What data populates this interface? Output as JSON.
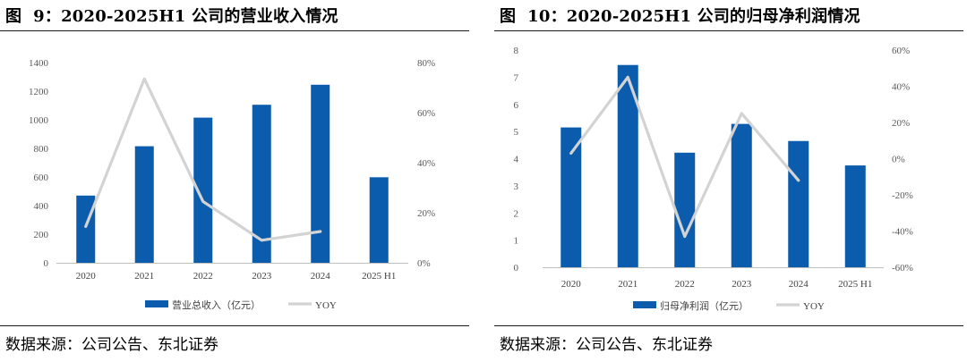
{
  "figures": [
    {
      "id": "left",
      "fig_label": "图",
      "fig_number": "9：",
      "fig_title": "2020-2025H1 公司的营业收入情况",
      "source": "数据来源：公司公告、东北证券",
      "chart_data": {
        "type": "bar",
        "categories": [
          "2020",
          "2021",
          "2022",
          "2023",
          "2024",
          "2025 H1"
        ],
        "bar_series": {
          "name": "营业总收入（亿元）",
          "values": [
            470,
            815,
            1015,
            1105,
            1245,
            598
          ],
          "color": "#0b5cad"
        },
        "line_series": {
          "name": "YOY",
          "values": [
            14.5,
            73.5,
            24.5,
            9.0,
            12.5,
            null
          ],
          "color": "#d3d3d3"
        },
        "y_left": {
          "min": 0,
          "max": 1400,
          "ticks": [
            0,
            200,
            400,
            600,
            800,
            1000,
            1200,
            1400
          ],
          "tick_labels": [
            "0",
            "200",
            "400",
            "600",
            "800",
            "1000",
            "1200",
            "1400"
          ]
        },
        "y_right": {
          "min": 0,
          "max": 80,
          "ticks": [
            0,
            20,
            40,
            60,
            80
          ],
          "tick_labels": [
            "0%",
            "20%",
            "40%",
            "60%",
            "80%"
          ]
        },
        "title": "2020-2025H1 公司的营业收入情况"
      }
    },
    {
      "id": "right",
      "fig_label": "图",
      "fig_number": "10：",
      "fig_title": "2020-2025H1 公司的归母净利润情况",
      "source": "数据来源：公司公告、东北证券",
      "chart_data": {
        "type": "bar",
        "categories": [
          "2020",
          "2021",
          "2022",
          "2023",
          "2024",
          "2025 H1"
        ],
        "bar_series": {
          "name": "归母净利润（亿元）",
          "values": [
            5.15,
            7.45,
            4.22,
            5.28,
            4.65,
            3.75
          ],
          "color": "#0b5cad"
        },
        "line_series": {
          "name": "YOY",
          "values": [
            3,
            45,
            -43,
            25,
            -12,
            null
          ],
          "color": "#d3d3d3"
        },
        "y_left": {
          "min": 0,
          "max": 8,
          "ticks": [
            0,
            1,
            2,
            3,
            4,
            5,
            6,
            7,
            8
          ],
          "tick_labels": [
            "0",
            "1",
            "2",
            "3",
            "4",
            "5",
            "6",
            "7",
            "8"
          ]
        },
        "y_right": {
          "min": -60,
          "max": 60,
          "ticks": [
            -60,
            -40,
            -20,
            0,
            20,
            40,
            60
          ],
          "tick_labels": [
            "-60%",
            "-40%",
            "-20%",
            "0%",
            "20%",
            "40%",
            "60%"
          ]
        },
        "title": "2020-2025H1 公司的归母净利润情况"
      }
    }
  ]
}
